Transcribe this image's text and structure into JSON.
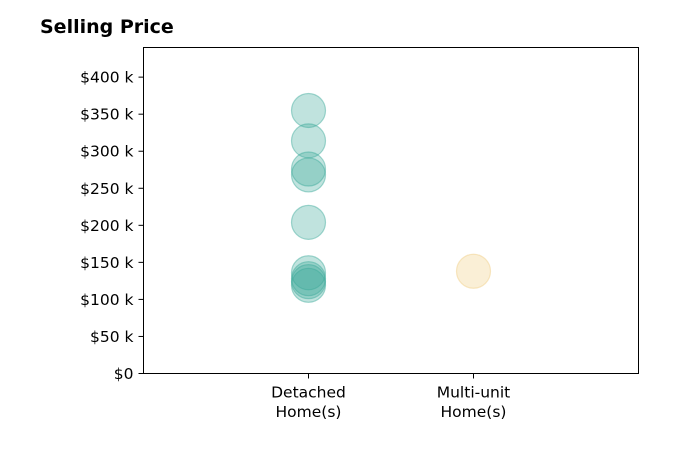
{
  "chart_data": {
    "type": "scatter",
    "title": "Selling Price",
    "xlabel": "",
    "ylabel": "",
    "categories": [
      "Detached\nHome(s)",
      "Multi-unit\nHome(s)"
    ],
    "xlim": [
      -1,
      2
    ],
    "ylim": [
      0,
      440000
    ],
    "y_ticks": [
      0,
      50000,
      100000,
      150000,
      200000,
      250000,
      300000,
      350000,
      400000
    ],
    "y_tick_labels": [
      "$0",
      "$50 k",
      "$100 k",
      "$150 k",
      "$200 k",
      "$250 k",
      "$300 k",
      "$350 k",
      "$400 k"
    ],
    "grid": false,
    "series": [
      {
        "category_index": 0,
        "color": "#3aa898",
        "values": [
          355000,
          314000,
          276000,
          268000,
          204000,
          136000,
          128000,
          124000,
          119000
        ]
      },
      {
        "category_index": 1,
        "color": "#f0cc80",
        "values": [
          138000
        ]
      }
    ]
  }
}
